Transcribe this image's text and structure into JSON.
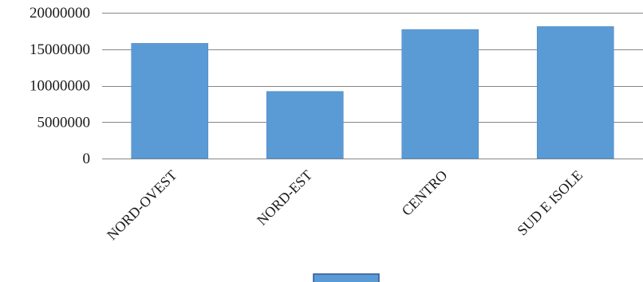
{
  "chart_data": {
    "type": "bar",
    "categories": [
      "NORD-OVEST",
      "NORD-EST",
      "CENTRO",
      "SUD E ISOLE"
    ],
    "values": [
      15800000,
      9200000,
      17700000,
      18100000
    ],
    "ylim": [
      0,
      20000000
    ],
    "yticks": [
      0,
      5000000,
      10000000,
      15000000,
      20000000
    ],
    "title": "",
    "xlabel": "",
    "ylabel": "",
    "grid": true,
    "legend": "bottom",
    "legend_entries": [
      ""
    ],
    "bar_color": "#5b9bd5",
    "bar_edge_color": "#4a87c0",
    "grid_color": "#868686",
    "legend_border_color": "#2f5597",
    "text_color": "#1a1a1a"
  }
}
